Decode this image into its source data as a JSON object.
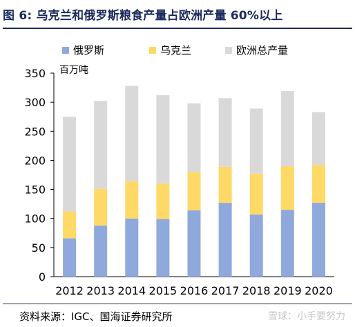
{
  "header": {
    "title": "图 6: 乌克兰和俄罗斯粮食产量占欧洲产量 60%以上"
  },
  "footer": {
    "source": "资料来源：IGC、国海证券研究所",
    "watermark": "雪球：小手要努力"
  },
  "chart_data": {
    "type": "bar",
    "stacked": true,
    "categories": [
      "2012",
      "2013",
      "2014",
      "2015",
      "2016",
      "2017",
      "2018",
      "2019",
      "2020"
    ],
    "series": [
      {
        "name": "俄罗斯",
        "color": "#8fa9dc",
        "values": [
          66,
          88,
          100,
          99,
          114,
          127,
          107,
          115,
          127
        ]
      },
      {
        "name": "乌克兰",
        "color": "#ffd966",
        "values": [
          46,
          63,
          64,
          61,
          66,
          62,
          70,
          75,
          65
        ]
      },
      {
        "name": "欧洲总产量",
        "color": "#d9d9d9",
        "values": [
          163,
          151,
          164,
          152,
          118,
          118,
          112,
          129,
          91
        ]
      }
    ],
    "unit_label": "百万吨",
    "ylim": [
      0,
      350
    ],
    "yticks": [
      0,
      50,
      100,
      150,
      200,
      250,
      300,
      350
    ],
    "grid": false,
    "legend": "top"
  }
}
